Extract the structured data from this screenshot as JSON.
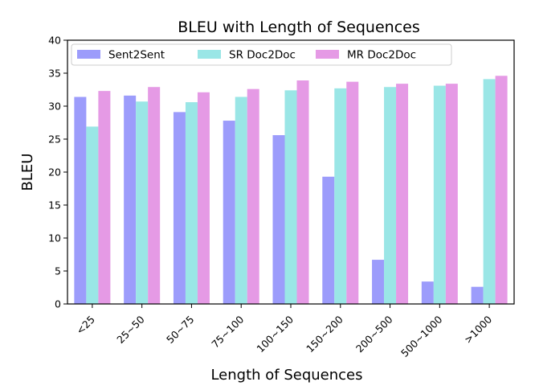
{
  "chart_data": {
    "type": "bar",
    "title": "BLEU with Length of Sequences",
    "xlabel": "Length of Sequences",
    "ylabel": "BLEU",
    "ylim": [
      0,
      40
    ],
    "yticks": [
      0,
      5,
      10,
      15,
      20,
      25,
      30,
      35,
      40
    ],
    "grid": false,
    "legend_position": "top",
    "categories": [
      "<25",
      "25~50",
      "50~75",
      "75~100",
      "100~150",
      "150~200",
      "200~500",
      "500~1000",
      ">1000"
    ],
    "series": [
      {
        "name": "Sent2Sent",
        "color": "#9c9cfb",
        "values": [
          31.4,
          31.6,
          29.1,
          27.8,
          25.6,
          19.3,
          6.7,
          3.4,
          2.6
        ]
      },
      {
        "name": "SR Doc2Doc",
        "color": "#9ae6e6",
        "values": [
          26.9,
          30.7,
          30.6,
          31.4,
          32.4,
          32.7,
          32.9,
          33.1,
          34.1
        ]
      },
      {
        "name": "MR Doc2Doc",
        "color": "#e59ae5",
        "values": [
          32.3,
          32.9,
          32.1,
          32.6,
          33.9,
          33.7,
          33.4,
          33.4,
          34.6
        ]
      }
    ]
  }
}
